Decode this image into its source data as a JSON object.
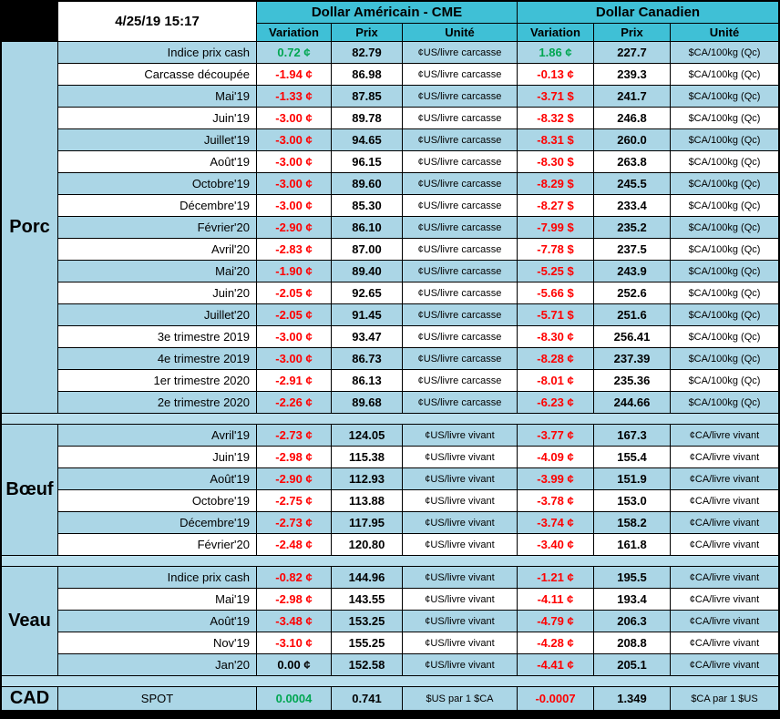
{
  "title_block": {
    "datetime": "4/25/19 15:17",
    "us_title": "Dollar Américain - CME",
    "ca_title": "Dollar Canadien",
    "subheaders": [
      "Variation",
      "Prix",
      "Unité"
    ]
  },
  "colors": {
    "variation_up": "#00a651",
    "variation_down": "#ff0000",
    "variation_flat": "#000000",
    "row_blue": "#abd6e6",
    "row_white": "#ffffff",
    "separator_blue": "#b9dfed",
    "header_cyan": "#3fc0d6",
    "grid_line": "#000000"
  },
  "sections": [
    {
      "name": "Porc",
      "rows": [
        {
          "label": "Indice prix cash",
          "us_var": "0.72 ¢",
          "us_dir": "up",
          "us_prix": "82.79",
          "us_unit": "¢US/livre carcasse",
          "ca_var": "1.86 ¢",
          "ca_dir": "up",
          "ca_prix": "227.7",
          "ca_unit": "$CA/100kg (Qc)"
        },
        {
          "label": "Carcasse découpée",
          "us_var": "-1.94 ¢",
          "us_dir": "down",
          "us_prix": "86.98",
          "us_unit": "¢US/livre carcasse",
          "ca_var": "-0.13 ¢",
          "ca_dir": "down",
          "ca_prix": "239.3",
          "ca_unit": "$CA/100kg (Qc)"
        },
        {
          "label": "Mai'19",
          "us_var": "-1.33 ¢",
          "us_dir": "down",
          "us_prix": "87.85",
          "us_unit": "¢US/livre carcasse",
          "ca_var": "-3.71 $",
          "ca_dir": "down",
          "ca_prix": "241.7",
          "ca_unit": "$CA/100kg (Qc)"
        },
        {
          "label": "Juin'19",
          "us_var": "-3.00 ¢",
          "us_dir": "down",
          "us_prix": "89.78",
          "us_unit": "¢US/livre carcasse",
          "ca_var": "-8.32 $",
          "ca_dir": "down",
          "ca_prix": "246.8",
          "ca_unit": "$CA/100kg (Qc)"
        },
        {
          "label": "Juillet'19",
          "us_var": "-3.00 ¢",
          "us_dir": "down",
          "us_prix": "94.65",
          "us_unit": "¢US/livre carcasse",
          "ca_var": "-8.31 $",
          "ca_dir": "down",
          "ca_prix": "260.0",
          "ca_unit": "$CA/100kg (Qc)"
        },
        {
          "label": "Août'19",
          "us_var": "-3.00 ¢",
          "us_dir": "down",
          "us_prix": "96.15",
          "us_unit": "¢US/livre carcasse",
          "ca_var": "-8.30 $",
          "ca_dir": "down",
          "ca_prix": "263.8",
          "ca_unit": "$CA/100kg (Qc)"
        },
        {
          "label": "Octobre'19",
          "us_var": "-3.00 ¢",
          "us_dir": "down",
          "us_prix": "89.60",
          "us_unit": "¢US/livre carcasse",
          "ca_var": "-8.29 $",
          "ca_dir": "down",
          "ca_prix": "245.5",
          "ca_unit": "$CA/100kg (Qc)"
        },
        {
          "label": "Décembre'19",
          "us_var": "-3.00 ¢",
          "us_dir": "down",
          "us_prix": "85.30",
          "us_unit": "¢US/livre carcasse",
          "ca_var": "-8.27 $",
          "ca_dir": "down",
          "ca_prix": "233.4",
          "ca_unit": "$CA/100kg (Qc)"
        },
        {
          "label": "Février'20",
          "us_var": "-2.90 ¢",
          "us_dir": "down",
          "us_prix": "86.10",
          "us_unit": "¢US/livre carcasse",
          "ca_var": "-7.99 $",
          "ca_dir": "down",
          "ca_prix": "235.2",
          "ca_unit": "$CA/100kg (Qc)"
        },
        {
          "label": "Avril'20",
          "us_var": "-2.83 ¢",
          "us_dir": "down",
          "us_prix": "87.00",
          "us_unit": "¢US/livre carcasse",
          "ca_var": "-7.78 $",
          "ca_dir": "down",
          "ca_prix": "237.5",
          "ca_unit": "$CA/100kg (Qc)"
        },
        {
          "label": "Mai'20",
          "us_var": "-1.90 ¢",
          "us_dir": "down",
          "us_prix": "89.40",
          "us_unit": "¢US/livre carcasse",
          "ca_var": "-5.25 $",
          "ca_dir": "down",
          "ca_prix": "243.9",
          "ca_unit": "$CA/100kg (Qc)"
        },
        {
          "label": "Juin'20",
          "us_var": "-2.05 ¢",
          "us_dir": "down",
          "us_prix": "92.65",
          "us_unit": "¢US/livre carcasse",
          "ca_var": "-5.66 $",
          "ca_dir": "down",
          "ca_prix": "252.6",
          "ca_unit": "$CA/100kg (Qc)"
        },
        {
          "label": "Juillet'20",
          "us_var": "-2.05 ¢",
          "us_dir": "down",
          "us_prix": "91.45",
          "us_unit": "¢US/livre carcasse",
          "ca_var": "-5.71 $",
          "ca_dir": "down",
          "ca_prix": "251.6",
          "ca_unit": "$CA/100kg (Qc)"
        },
        {
          "label": "3e trimestre 2019",
          "us_var": "-3.00 ¢",
          "us_dir": "down",
          "us_prix": "93.47",
          "us_unit": "¢US/livre carcasse",
          "ca_var": "-8.30 ¢",
          "ca_dir": "down",
          "ca_prix": "256.41",
          "ca_unit": "$CA/100kg (Qc)"
        },
        {
          "label": "4e trimestre 2019",
          "us_var": "-3.00 ¢",
          "us_dir": "down",
          "us_prix": "86.73",
          "us_unit": "¢US/livre carcasse",
          "ca_var": "-8.28 ¢",
          "ca_dir": "down",
          "ca_prix": "237.39",
          "ca_unit": "$CA/100kg (Qc)"
        },
        {
          "label": "1er trimestre 2020",
          "us_var": "-2.91 ¢",
          "us_dir": "down",
          "us_prix": "86.13",
          "us_unit": "¢US/livre carcasse",
          "ca_var": "-8.01 ¢",
          "ca_dir": "down",
          "ca_prix": "235.36",
          "ca_unit": "$CA/100kg (Qc)"
        },
        {
          "label": "2e trimestre 2020",
          "us_var": "-2.26 ¢",
          "us_dir": "down",
          "us_prix": "89.68",
          "us_unit": "¢US/livre carcasse",
          "ca_var": "-6.23 ¢",
          "ca_dir": "down",
          "ca_prix": "244.66",
          "ca_unit": "$CA/100kg (Qc)"
        }
      ]
    },
    {
      "name": "Bœuf",
      "rows": [
        {
          "label": "Avril'19",
          "us_var": "-2.73 ¢",
          "us_dir": "down",
          "us_prix": "124.05",
          "us_unit": "¢US/livre vivant",
          "ca_var": "-3.77 ¢",
          "ca_dir": "down",
          "ca_prix": "167.3",
          "ca_unit": "¢CA/livre vivant"
        },
        {
          "label": "Juin'19",
          "us_var": "-2.98 ¢",
          "us_dir": "down",
          "us_prix": "115.38",
          "us_unit": "¢US/livre vivant",
          "ca_var": "-4.09 ¢",
          "ca_dir": "down",
          "ca_prix": "155.4",
          "ca_unit": "¢CA/livre vivant"
        },
        {
          "label": "Août'19",
          "us_var": "-2.90 ¢",
          "us_dir": "down",
          "us_prix": "112.93",
          "us_unit": "¢US/livre vivant",
          "ca_var": "-3.99 ¢",
          "ca_dir": "down",
          "ca_prix": "151.9",
          "ca_unit": "¢CA/livre vivant"
        },
        {
          "label": "Octobre'19",
          "us_var": "-2.75 ¢",
          "us_dir": "down",
          "us_prix": "113.88",
          "us_unit": "¢US/livre vivant",
          "ca_var": "-3.78 ¢",
          "ca_dir": "down",
          "ca_prix": "153.0",
          "ca_unit": "¢CA/livre vivant"
        },
        {
          "label": "Décembre'19",
          "us_var": "-2.73 ¢",
          "us_dir": "down",
          "us_prix": "117.95",
          "us_unit": "¢US/livre vivant",
          "ca_var": "-3.74 ¢",
          "ca_dir": "down",
          "ca_prix": "158.2",
          "ca_unit": "¢CA/livre vivant"
        },
        {
          "label": "Février'20",
          "us_var": "-2.48 ¢",
          "us_dir": "down",
          "us_prix": "120.80",
          "us_unit": "¢US/livre vivant",
          "ca_var": "-3.40 ¢",
          "ca_dir": "down",
          "ca_prix": "161.8",
          "ca_unit": "¢CA/livre vivant"
        }
      ]
    },
    {
      "name": "Veau",
      "rows": [
        {
          "label": "Indice prix cash",
          "us_var": "-0.82 ¢",
          "us_dir": "down",
          "us_prix": "144.96",
          "us_unit": "¢US/livre vivant",
          "ca_var": "-1.21 ¢",
          "ca_dir": "down",
          "ca_prix": "195.5",
          "ca_unit": "¢CA/livre vivant"
        },
        {
          "label": "Mai'19",
          "us_var": "-2.98 ¢",
          "us_dir": "down",
          "us_prix": "143.55",
          "us_unit": "¢US/livre vivant",
          "ca_var": "-4.11 ¢",
          "ca_dir": "down",
          "ca_prix": "193.4",
          "ca_unit": "¢CA/livre vivant"
        },
        {
          "label": "Août'19",
          "us_var": "-3.48 ¢",
          "us_dir": "down",
          "us_prix": "153.25",
          "us_unit": "¢US/livre vivant",
          "ca_var": "-4.79 ¢",
          "ca_dir": "down",
          "ca_prix": "206.3",
          "ca_unit": "¢CA/livre vivant"
        },
        {
          "label": "Nov'19",
          "us_var": "-3.10 ¢",
          "us_dir": "down",
          "us_prix": "155.25",
          "us_unit": "¢US/livre vivant",
          "ca_var": "-4.28 ¢",
          "ca_dir": "down",
          "ca_prix": "208.8",
          "ca_unit": "¢CA/livre vivant"
        },
        {
          "label": "Jan'20",
          "us_var": "0.00 ¢",
          "us_dir": "flat",
          "us_prix": "152.58",
          "us_unit": "¢US/livre vivant",
          "ca_var": "-4.41 ¢",
          "ca_dir": "down",
          "ca_prix": "205.1",
          "ca_unit": "¢CA/livre vivant"
        }
      ]
    },
    {
      "name": "CAD",
      "tall": true,
      "rows": [
        {
          "label": "SPOT",
          "center": true,
          "us_var": "0.0004",
          "us_dir": "up",
          "us_prix": "0.741",
          "us_unit": "$US par 1 $CA",
          "ca_var": "-0.0007",
          "ca_dir": "down",
          "ca_prix": "1.349",
          "ca_unit": "$CA par 1 $US"
        }
      ]
    }
  ]
}
